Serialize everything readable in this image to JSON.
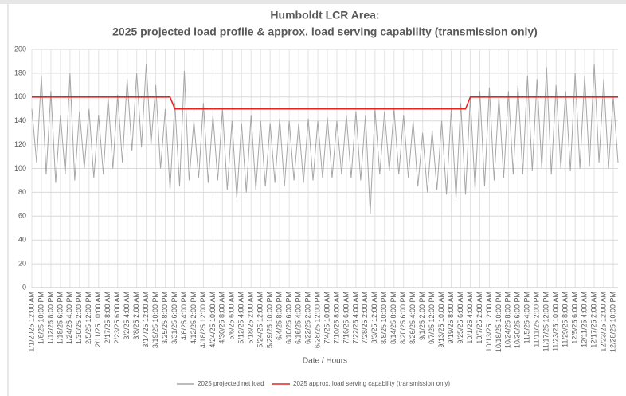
{
  "chart_data": {
    "type": "line",
    "title": "Humboldt LCR Area:",
    "subtitle": "2025 projected load profile & approx. load serving capability (transmission only)",
    "x_label": "Date / Hours",
    "categories": [
      "1/1/2025 12:00 AM",
      null,
      "1/6/25 10:00 PM",
      null,
      "1/12/25 8:00 PM",
      null,
      "1/18/25 6:00 PM",
      null,
      "1/24/25 4:00 PM",
      null,
      "1/30/25 2:00 PM",
      null,
      "2/5/25 12:00 PM",
      null,
      "2/11/25 10:00 AM",
      null,
      "2/17/25 8:00 AM",
      null,
      "2/23/25 6:00 AM",
      null,
      "3/2/25 4:00 AM",
      null,
      "3/8/25 2:00 AM",
      null,
      "3/14/25 12:00 AM",
      null,
      "3/19/25 10:00 PM",
      null,
      "3/25/25 8:00 PM",
      null,
      "3/31/25 6:00 PM",
      null,
      "4/6/25 4:00 PM",
      null,
      "4/12/25 2:00 PM",
      null,
      "4/18/25 12:00 PM",
      null,
      "4/24/25 10:00 AM",
      null,
      "4/30/25 8:00 AM",
      null,
      "5/6/25 6:00 AM",
      null,
      "5/12/25 4:00 AM",
      null,
      "5/18/25 2:00 AM",
      null,
      "5/24/25 12:00 AM",
      null,
      "5/29/25 10:00 PM",
      null,
      "6/4/25 8:00 PM",
      null,
      "6/10/25 6:00 PM",
      null,
      "6/16/25 4:00 PM",
      null,
      "6/22/25 2:00 PM",
      null,
      "6/28/25 12:00 PM",
      null,
      "7/4/25 10:00 AM",
      null,
      "7/10/25 8:00 AM",
      null,
      "7/16/25 6:00 AM",
      null,
      "7/22/25 4:00 AM",
      null,
      "7/28/25 2:00 AM",
      null,
      "8/3/25 12:00 AM",
      null,
      "8/8/25 10:00 PM",
      null,
      "8/14/25 8:00 PM",
      null,
      "8/20/25 6:00 PM",
      null,
      "8/26/25 4:00 PM",
      null,
      "9/1/25 2:00 PM",
      null,
      "9/7/25 12:00 PM",
      null,
      "9/13/25 10:00 AM",
      null,
      "9/19/25 8:00 AM",
      null,
      "9/25/25 6:00 AM",
      null,
      "10/1/25 4:00 AM",
      null,
      "10/7/25 2:00 AM",
      null,
      "10/13/25 12:00 AM",
      null,
      "10/18/25 10:00 PM",
      null,
      "10/24/25 8:00 PM",
      null,
      "10/30/25 6:00 PM",
      null,
      "11/5/25 4:00 PM",
      null,
      "11/11/25 2:00 PM",
      null,
      "11/17/25 12:00 PM",
      null,
      "11/23/25 10:00 AM",
      null,
      "11/29/25 8:00 AM",
      null,
      "12/5/25 6:00 AM",
      null,
      "12/11/25 4:00 AM",
      null,
      "12/17/25 2:00 AM",
      null,
      "12/23/25 12:00 AM",
      null,
      "12/28/25 10:00 PM",
      null
    ],
    "series": [
      {
        "name": "2025 projected net load",
        "color": "#a6a6a6",
        "values": [
          150,
          105,
          178,
          95,
          165,
          88,
          145,
          95,
          180,
          90,
          148,
          100,
          150,
          92,
          145,
          95,
          160,
          100,
          162,
          105,
          175,
          115,
          180,
          118,
          188,
          120,
          170,
          100,
          150,
          82,
          155,
          85,
          182,
          90,
          140,
          92,
          155,
          88,
          145,
          90,
          150,
          82,
          140,
          75,
          138,
          80,
          145,
          82,
          140,
          85,
          138,
          88,
          142,
          85,
          140,
          90,
          138,
          88,
          142,
          90,
          140,
          92,
          143,
          92,
          140,
          95,
          145,
          92,
          148,
          90,
          145,
          62,
          150,
          95,
          148,
          98,
          150,
          95,
          145,
          92,
          140,
          85,
          130,
          80,
          132,
          82,
          140,
          78,
          150,
          75,
          155,
          78,
          160,
          82,
          165,
          85,
          168,
          90,
          160,
          92,
          165,
          95,
          170,
          95,
          178,
          98,
          175,
          100,
          185,
          95,
          170,
          100,
          165,
          98,
          180,
          100,
          178,
          102,
          188,
          105,
          175,
          100,
          160,
          105
        ]
      },
      {
        "name": "2025 approx. load serving capability (transmission only)",
        "color": "#e8231f",
        "values": [
          160,
          160,
          160,
          160,
          160,
          160,
          160,
          160,
          160,
          160,
          160,
          160,
          160,
          160,
          160,
          160,
          160,
          160,
          160,
          160,
          160,
          160,
          160,
          160,
          160,
          160,
          160,
          160,
          160,
          160,
          150,
          150,
          150,
          150,
          150,
          150,
          150,
          150,
          150,
          150,
          150,
          150,
          150,
          150,
          150,
          150,
          150,
          150,
          150,
          150,
          150,
          150,
          150,
          150,
          150,
          150,
          150,
          150,
          150,
          150,
          150,
          150,
          150,
          150,
          150,
          150,
          150,
          150,
          150,
          150,
          150,
          150,
          150,
          150,
          150,
          150,
          150,
          150,
          150,
          150,
          150,
          150,
          150,
          150,
          150,
          150,
          150,
          150,
          150,
          150,
          150,
          150,
          160,
          160,
          160,
          160,
          160,
          160,
          160,
          160,
          160,
          160,
          160,
          160,
          160,
          160,
          160,
          160,
          160,
          160,
          160,
          160,
          160,
          160,
          160,
          160,
          160,
          160,
          160,
          160,
          160,
          160,
          160,
          160
        ]
      }
    ],
    "ylim": [
      0,
      200
    ],
    "yticks": [
      0,
      20,
      40,
      60,
      80,
      100,
      120,
      140,
      160,
      180,
      200
    ],
    "grid": true,
    "legend": "bottom"
  }
}
